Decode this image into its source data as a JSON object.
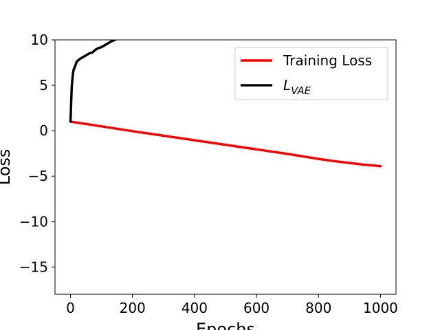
{
  "chart_data": {
    "type": "line",
    "title": "",
    "xlabel": "Epochs",
    "ylabel": "Loss",
    "xlim": [
      -50,
      1050
    ],
    "ylim": [
      -18,
      10
    ],
    "xticks": [
      0,
      200,
      400,
      600,
      800,
      1000
    ],
    "xtick_labels": [
      "0",
      "200",
      "400",
      "600",
      "800",
      "1000"
    ],
    "yticks": [
      10,
      5,
      0,
      -5,
      -10,
      -15
    ],
    "ytick_labels": [
      "10",
      "5",
      "0",
      "−5",
      "−10",
      "−15"
    ],
    "grid": false,
    "legend_position": "top-right",
    "series": [
      {
        "name": "Training Loss",
        "color": "#ff0000",
        "x": [
          0,
          100,
          200,
          300,
          400,
          500,
          600,
          700,
          800,
          850,
          900,
          950,
          1000
        ],
        "y": [
          1.0,
          0.48,
          -0.05,
          -0.55,
          -1.05,
          -1.55,
          -2.05,
          -2.55,
          -3.1,
          -3.35,
          -3.55,
          -3.75,
          -3.9
        ]
      },
      {
        "name_main": "L",
        "name_sub": "VAE",
        "color": "#000000",
        "x": [
          0,
          2,
          4,
          6,
          8,
          10,
          15,
          20,
          30,
          40,
          50,
          60,
          70,
          80,
          90,
          100,
          110,
          120,
          130,
          140,
          150
        ],
        "y": [
          1.0,
          3.0,
          4.8,
          5.6,
          6.3,
          6.7,
          7.1,
          7.6,
          7.9,
          8.1,
          8.3,
          8.5,
          8.6,
          8.9,
          9.1,
          9.2,
          9.4,
          9.6,
          9.8,
          9.95,
          10.1
        ]
      }
    ]
  }
}
